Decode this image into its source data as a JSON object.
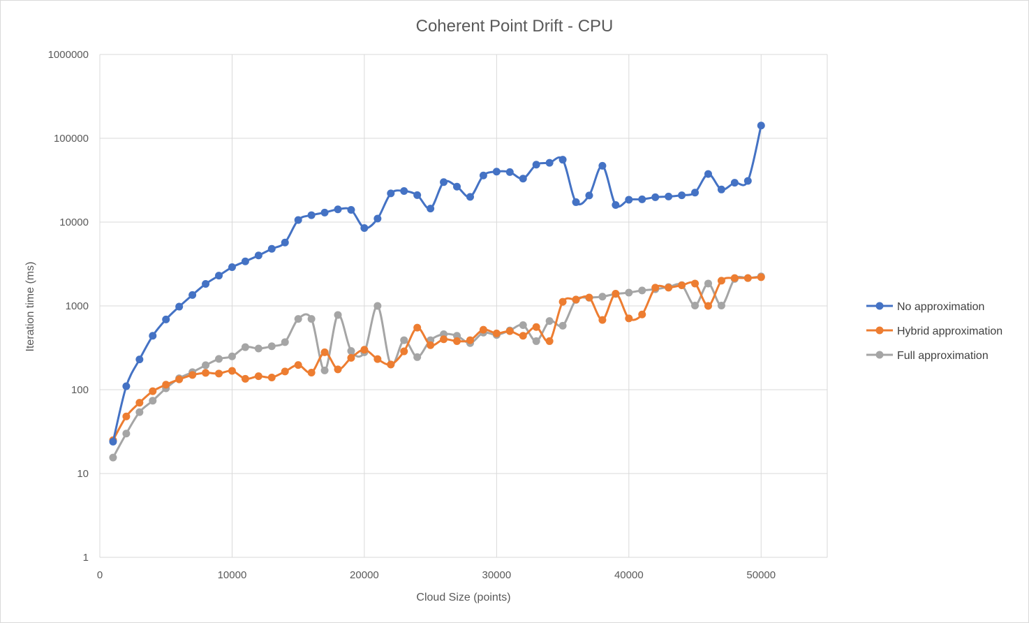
{
  "chart_data": {
    "type": "line",
    "title": "Coherent Point Drift - CPU",
    "xlabel": "Cloud Size (points)",
    "ylabel": "Iteration time (ms)",
    "xlim": [
      0,
      55000
    ],
    "x_ticks": [
      0,
      10000,
      20000,
      30000,
      40000,
      50000
    ],
    "x_tick_labels": [
      "0",
      "10000",
      "20000",
      "30000",
      "40000",
      "50000"
    ],
    "ylim": [
      1,
      1000000
    ],
    "y_scale": "log",
    "y_ticks": [
      1,
      10,
      100,
      1000,
      10000,
      100000,
      1000000
    ],
    "y_tick_labels": [
      "1",
      "10",
      "100",
      "1000",
      "10000",
      "100000",
      "1000000"
    ],
    "grid": true,
    "legend_position": "right",
    "x": [
      1000,
      2000,
      3000,
      4000,
      5000,
      6000,
      7000,
      8000,
      9000,
      10000,
      11000,
      12000,
      13000,
      14000,
      15000,
      16000,
      17000,
      18000,
      19000,
      20000,
      21000,
      22000,
      23000,
      24000,
      25000,
      26000,
      27000,
      28000,
      29000,
      30000,
      31000,
      32000,
      33000,
      34000,
      35000,
      36000,
      37000,
      38000,
      39000,
      40000,
      41000,
      42000,
      43000,
      44000,
      45000,
      46000,
      47000,
      48000,
      49000,
      50000
    ],
    "series": [
      {
        "name": "No approximation",
        "color": "#4472c4",
        "values": [
          24,
          110,
          230,
          440,
          690,
          980,
          1350,
          1830,
          2300,
          2900,
          3400,
          4000,
          4800,
          5700,
          10600,
          12100,
          13000,
          14200,
          14000,
          8500,
          11000,
          22000,
          23500,
          21000,
          14500,
          30000,
          26500,
          20000,
          36000,
          40000,
          39500,
          33000,
          48500,
          51000,
          55500,
          17300,
          20800,
          47000,
          16000,
          18500,
          18700,
          19800,
          20200,
          20900,
          22500,
          37500,
          24500,
          29500,
          31000,
          142000
        ]
      },
      {
        "name": "Hybrid approximation",
        "color": "#ed7d31",
        "values": [
          25,
          48,
          70,
          96,
          115,
          133,
          150,
          159,
          156,
          168,
          135,
          145,
          140,
          165,
          197,
          160,
          280,
          175,
          240,
          300,
          232,
          200,
          287,
          550,
          340,
          400,
          380,
          390,
          520,
          470,
          500,
          440,
          560,
          380,
          1120,
          1190,
          1260,
          680,
          1400,
          710,
          790,
          1650,
          1650,
          1760,
          1850,
          1000,
          2000,
          2150,
          2150,
          2200
        ]
      },
      {
        "name": "Full approximation",
        "color": "#a5a5a5",
        "values": [
          15.5,
          30,
          54,
          74,
          104,
          137,
          162,
          196,
          233,
          250,
          322,
          310,
          330,
          370,
          700,
          700,
          170,
          780,
          290,
          280,
          1000,
          200,
          390,
          245,
          390,
          460,
          440,
          360,
          480,
          450,
          510,
          590,
          380,
          660,
          580,
          1180,
          1250,
          1290,
          1390,
          1440,
          1530,
          1580,
          1680,
          1770,
          1010,
          1850,
          1010,
          2100,
          2150,
          2250
        ]
      }
    ]
  }
}
